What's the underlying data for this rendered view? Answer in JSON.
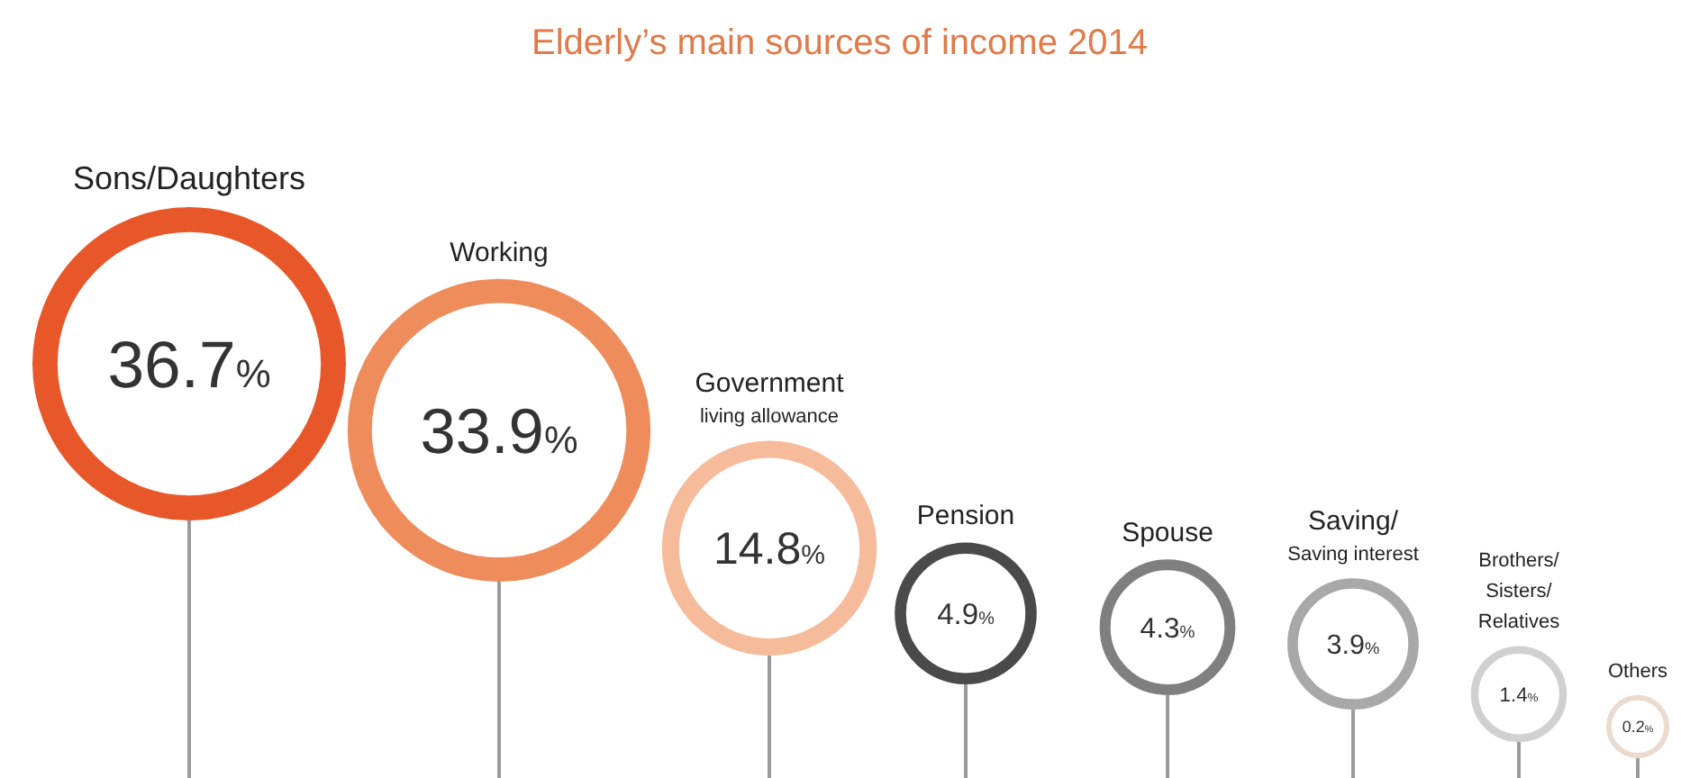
{
  "chart_data": {
    "type": "other",
    "title": "Elderly’s main sources of income 2014",
    "categories": [
      "Sons/Daughters",
      "Working",
      "Government\nliving allowance",
      "Pension",
      "Spouse",
      "Saving/\nSaving interest",
      "Brothers/\nSisters/\nRelatives",
      "Others"
    ],
    "values": [
      36.7,
      33.9,
      14.8,
      4.9,
      4.3,
      3.9,
      1.4,
      0.2
    ],
    "colors": [
      "#e8572a",
      "#ef8c5c",
      "#f6bb9b",
      "#4a4a4a",
      "#7f7f7f",
      "#a8a8a8",
      "#d0d0d0",
      "#eadbd0"
    ],
    "value_labels": [
      "36.7%",
      "33.9%",
      "14.8%",
      "4.9%",
      "4.3%",
      "3.9%",
      "1.4%",
      "0.2%"
    ]
  }
}
